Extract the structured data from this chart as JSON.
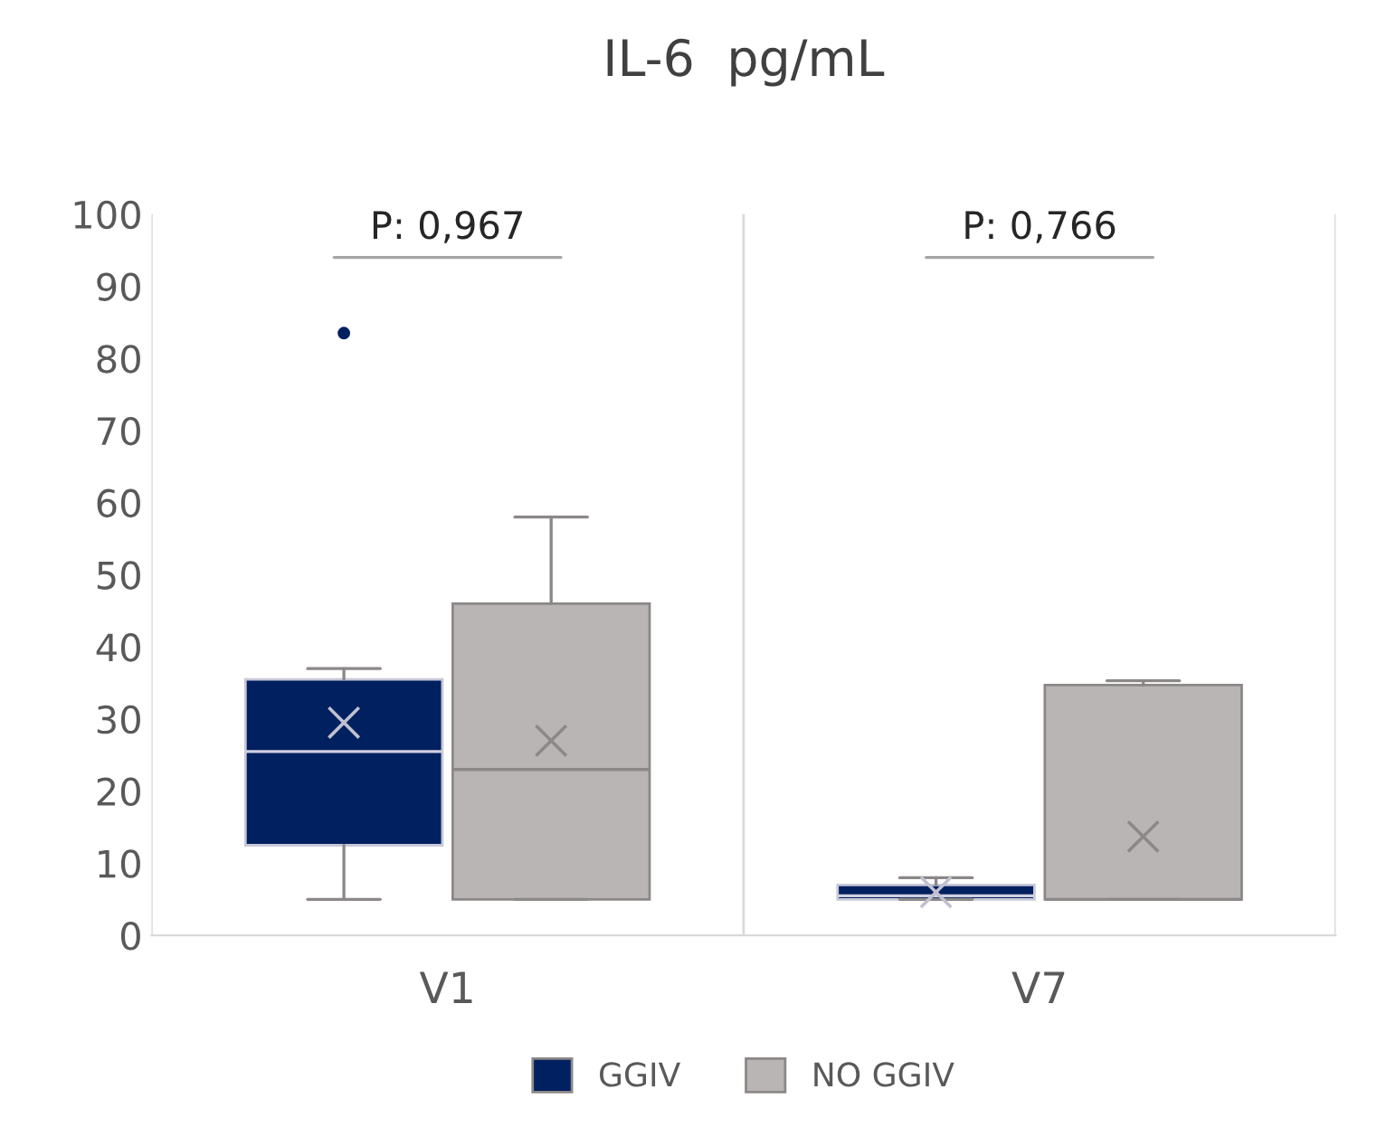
{
  "chart_data": {
    "type": "box",
    "title": "IL-6  pg/mL",
    "categories": [
      "V1",
      "V7"
    ],
    "series": [
      {
        "name": "GGIV",
        "color": "#002060",
        "boxes": [
          {
            "low": 5,
            "q1": 12.5,
            "median": 25.5,
            "q3": 35.5,
            "high": 37,
            "mean": 29.5,
            "outliers": [
              83.5
            ]
          },
          {
            "low": 5,
            "q1": 5,
            "median": 5.5,
            "q3": 7,
            "high": 8,
            "mean": 6
          }
        ]
      },
      {
        "name": "NO GGIV",
        "color": "#bab5b5",
        "boxes": [
          {
            "low": 5,
            "q1": 5,
            "median": 23,
            "q3": 46,
            "high": 58,
            "mean": 27
          },
          {
            "low": 5,
            "q1": 5,
            "median": 5,
            "q3": 34.7,
            "high": 35.3,
            "mean": 13.7
          }
        ]
      }
    ],
    "ylim": [
      0,
      100
    ],
    "yticks": [
      0,
      10,
      20,
      30,
      40,
      50,
      60,
      70,
      80,
      90,
      100
    ],
    "annotations": [
      "P: 0,967",
      "P: 0,766"
    ],
    "grid": "x",
    "legend": "bottom",
    "marker": "cross"
  }
}
